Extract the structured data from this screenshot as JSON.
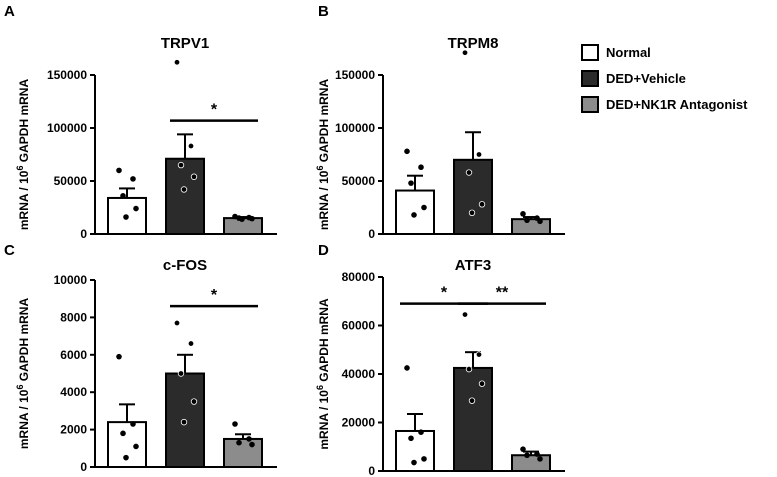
{
  "legend": [
    {
      "name": "Normal",
      "color": "#ffffff"
    },
    {
      "name": "DED+Vehicle",
      "color": "#2b2b2b"
    },
    {
      "name": "DED+NK1R Antagonist",
      "color": "#8c8c8c"
    }
  ],
  "ylabel": {
    "prefix": "mRNA / 10",
    "exp": "6",
    "suffix": " GAPDH mRNA"
  },
  "chart_data": [
    {
      "type": "bar",
      "panel": "A",
      "title": "TRPV1",
      "categories": [
        "Normal",
        "DED+Vehicle",
        "DED+NK1R Antagonist"
      ],
      "values": [
        34000,
        71000,
        15000
      ],
      "sem": [
        9000,
        23000,
        1000
      ],
      "points": [
        [
          60000,
          52000,
          36000,
          24000,
          16000
        ],
        [
          162000,
          83000,
          65000,
          54000,
          42000
        ],
        [
          16500,
          15500,
          15000,
          14500,
          14000
        ]
      ],
      "ylim": [
        0,
        150000
      ],
      "yticks": [
        0,
        50000,
        100000,
        150000
      ],
      "ytick_labels": [
        "0",
        "50000",
        "100000",
        "150000"
      ],
      "significance": [
        {
          "from": 1,
          "to": 2,
          "label": "*",
          "y": 107000
        }
      ]
    },
    {
      "type": "bar",
      "panel": "B",
      "title": "TRPM8",
      "categories": [
        "Normal",
        "DED+Vehicle",
        "DED+NK1R Antagonist"
      ],
      "values": [
        41000,
        70000,
        14000
      ],
      "sem": [
        14000,
        26000,
        2000
      ],
      "points": [
        [
          78000,
          63000,
          48000,
          25000,
          18000
        ],
        [
          171000,
          75000,
          58000,
          28000,
          20000
        ],
        [
          19000,
          15000,
          13000,
          12000
        ]
      ],
      "ylim": [
        0,
        150000
      ],
      "yticks": [
        0,
        50000,
        100000,
        150000
      ],
      "ytick_labels": [
        "0",
        "50000",
        "100000",
        "150000"
      ],
      "significance": []
    },
    {
      "type": "bar",
      "panel": "C",
      "title": "c-FOS",
      "categories": [
        "Normal",
        "DED+Vehicle",
        "DED+NK1R Antagonist"
      ],
      "values": [
        2400,
        5000,
        1500
      ],
      "sem": [
        950,
        1000,
        250
      ],
      "points": [
        [
          5900,
          2300,
          1800,
          1100,
          500
        ],
        [
          7700,
          6600,
          5000,
          3500,
          2400
        ],
        [
          2300,
          1500,
          1300,
          1200
        ]
      ],
      "ylim": [
        0,
        10000
      ],
      "yticks": [
        0,
        2000,
        4000,
        6000,
        8000,
        10000
      ],
      "ytick_labels": [
        "0",
        "2000",
        "4000",
        "6000",
        "8000",
        "10000"
      ],
      "significance": [
        {
          "from": 1,
          "to": 2,
          "label": "*",
          "y": 8600
        }
      ]
    },
    {
      "type": "bar",
      "panel": "D",
      "title": "ATF3",
      "categories": [
        "Normal",
        "DED+Vehicle",
        "DED+NK1R Antagonist"
      ],
      "values": [
        16500,
        42500,
        6500
      ],
      "sem": [
        7000,
        6500,
        1500
      ],
      "points": [
        [
          42500,
          16000,
          13500,
          5000,
          3500
        ],
        [
          64500,
          48000,
          42000,
          36000,
          29000
        ],
        [
          9000,
          7000,
          6500,
          5000
        ]
      ],
      "ylim": [
        0,
        80000
      ],
      "yticks": [
        0,
        20000,
        40000,
        60000,
        80000
      ],
      "ytick_labels": [
        "0",
        "20000",
        "40000",
        "60000",
        "80000"
      ],
      "significance": [
        {
          "from": 0,
          "to": 1,
          "label": "*",
          "y": 69000
        },
        {
          "from": 1,
          "to": 2,
          "label": "**",
          "y": 69000
        }
      ]
    }
  ]
}
